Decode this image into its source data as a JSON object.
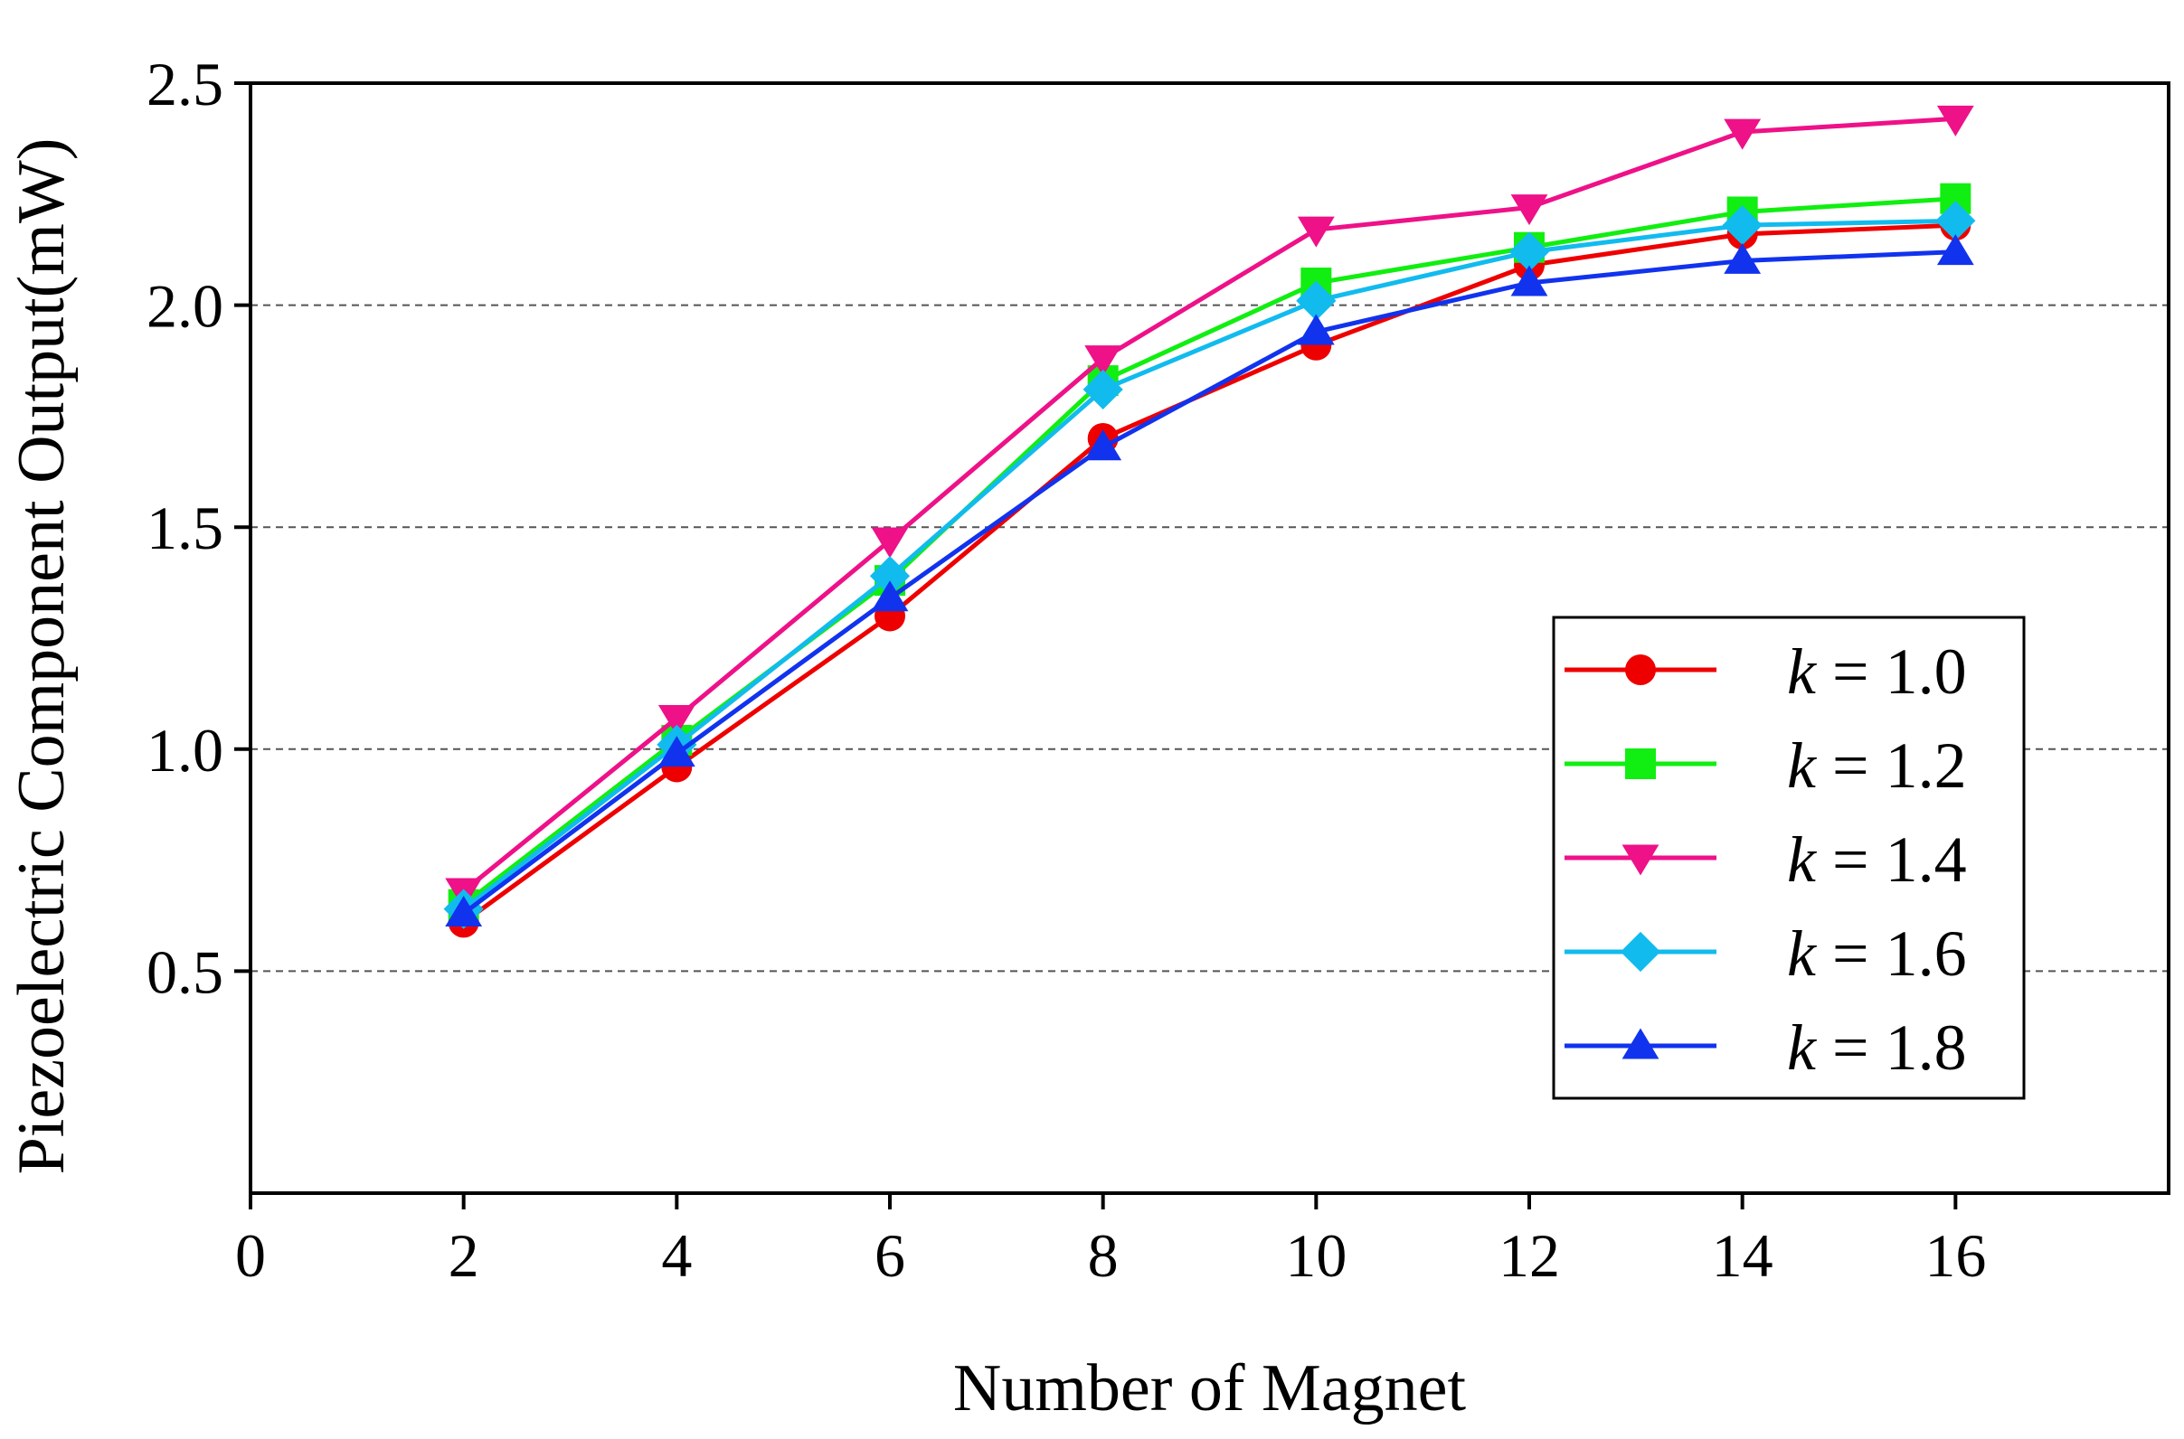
{
  "chart_data": {
    "type": "line",
    "title": "",
    "xlabel": "Number of Magnet",
    "ylabel": "Piezoelectric Component Output(mW)",
    "xlim": [
      0,
      18
    ],
    "ylim": [
      0,
      2.5
    ],
    "xticks": [
      0,
      2,
      4,
      6,
      8,
      10,
      12,
      14,
      16
    ],
    "yticks": [
      0.5,
      1.0,
      1.5,
      2.0,
      2.5
    ],
    "xtick_labels": [
      "0",
      "2",
      "4",
      "6",
      "8",
      "10",
      "12",
      "14",
      "16"
    ],
    "ytick_labels": [
      "0.5",
      "1.0",
      "1.5",
      "2.0",
      "2.5"
    ],
    "grid": "horizontal dashed",
    "legend_position": "bottom-right",
    "x": [
      2,
      4,
      6,
      8,
      10,
      12,
      14,
      16
    ],
    "series": [
      {
        "name": "k = 1.0",
        "k_symbol": "k",
        "k_value": "= 1.0",
        "color": "#ee0000",
        "marker": "circle",
        "values": [
          0.61,
          0.96,
          1.3,
          1.7,
          1.91,
          2.09,
          2.16,
          2.18
        ]
      },
      {
        "name": "k = 1.2",
        "k_symbol": "k",
        "k_value": "= 1.2",
        "color": "#11ee11",
        "marker": "square",
        "values": [
          0.65,
          1.02,
          1.38,
          1.83,
          2.05,
          2.13,
          2.21,
          2.24
        ]
      },
      {
        "name": "k = 1.4",
        "k_symbol": "k",
        "k_value": "= 1.4",
        "color": "#ee1188",
        "marker": "triangle-down",
        "values": [
          0.68,
          1.07,
          1.47,
          1.88,
          2.17,
          2.22,
          2.39,
          2.42
        ]
      },
      {
        "name": "k = 1.6",
        "k_symbol": "k",
        "k_value": "= 1.6",
        "color": "#11bbee",
        "marker": "diamond",
        "values": [
          0.64,
          1.01,
          1.39,
          1.81,
          2.01,
          2.12,
          2.18,
          2.19
        ]
      },
      {
        "name": "k = 1.8",
        "k_symbol": "k",
        "k_value": "= 1.8",
        "color": "#1133ee",
        "marker": "triangle-up",
        "values": [
          0.63,
          0.99,
          1.34,
          1.68,
          1.94,
          2.05,
          2.1,
          2.12
        ]
      }
    ]
  }
}
